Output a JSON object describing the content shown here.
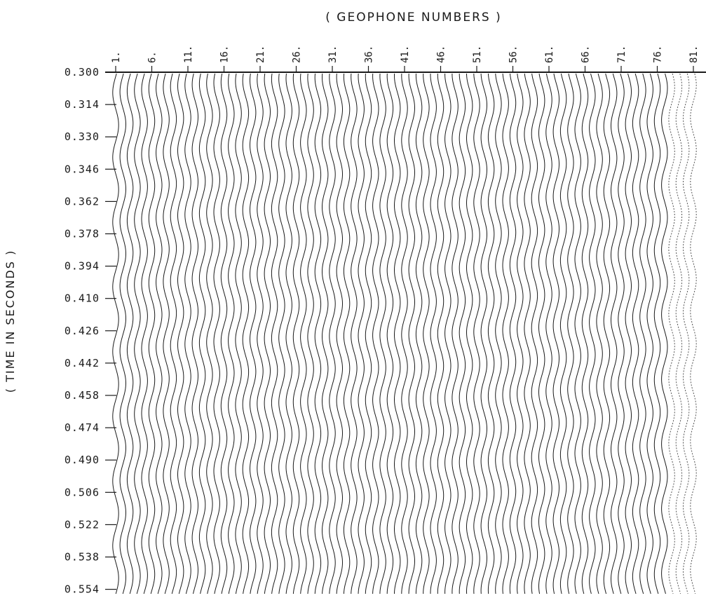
{
  "chart_data": {
    "type": "line",
    "title": "( GEOPHONE NUMBERS )",
    "xlabel": "( GEOPHONE NUMBERS )",
    "ylabel": "( TIME IN SECONDS )",
    "x_tick_labels": [
      "1.",
      "6.",
      "11.",
      "16.",
      "21.",
      "26.",
      "31.",
      "36.",
      "41.",
      "46.",
      "51.",
      "56.",
      "61.",
      "66.",
      "71.",
      "76.",
      "81."
    ],
    "y_tick_labels": [
      "0.300",
      "0.314",
      "0.330",
      "0.346",
      "0.362",
      "0.378",
      "0.394",
      "0.410",
      "0.426",
      "0.442",
      "0.458",
      "0.474",
      "0.490",
      "0.506",
      "0.522",
      "0.538",
      "0.554"
    ],
    "geophones": {
      "first": 1,
      "last": 81,
      "count": 81,
      "label_step": 5
    },
    "time_range": [
      0.3,
      0.554
    ],
    "y_axis_inverted": true,
    "trace_style": "wiggle",
    "waveform": {
      "period_seconds": 0.0318,
      "phase_moveout": "near-linear, shallow dip"
    },
    "grid": false,
    "legend": "none",
    "colors": {
      "ink": "#1a1a1a",
      "faint_trace": "#555555",
      "background": "#ffffff"
    }
  }
}
